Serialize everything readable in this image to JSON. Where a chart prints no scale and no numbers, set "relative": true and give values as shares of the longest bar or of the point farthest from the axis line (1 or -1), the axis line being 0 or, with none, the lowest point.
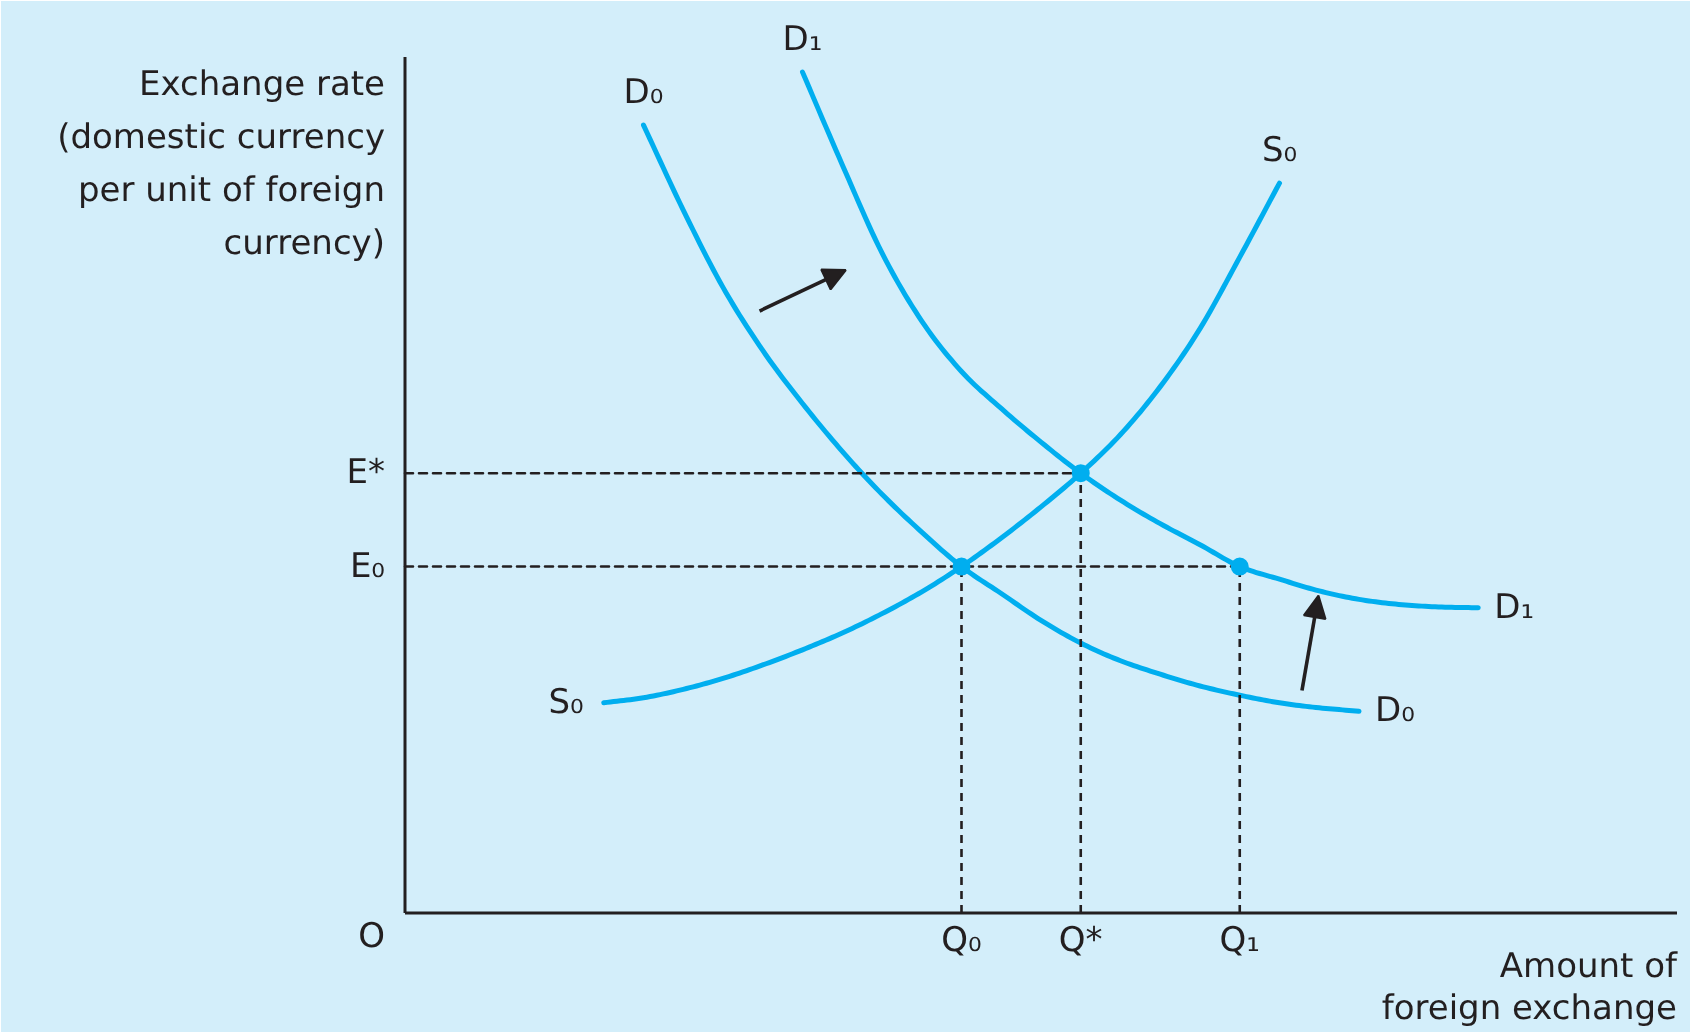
{
  "chart_data": {
    "type": "line",
    "relative": true,
    "xlabel": "Amount of foreign exchange",
    "ylabel": "Exchange rate (domestic currency per unit of foreign currency)",
    "categories": [
      null,
      null,
      null,
      null,
      null,
      null,
      null,
      null,
      null,
      null,
      null,
      null,
      null,
      null,
      "Q₀",
      null,
      null,
      "Q*",
      null,
      null,
      null,
      "Q₁",
      null,
      null,
      null,
      null,
      null,
      null,
      null,
      null,
      null,
      null,
      null
    ],
    "annotations": [
      "O"
    ],
    "series": [
      {
        "name": "D₀",
        "color": "#00aeef",
        "values": [
          null,
          null,
          null,
          null,
          null,
          null,
          0.937,
          0.836,
          0.744,
          0.669,
          0.606,
          0.549,
          0.498,
          0.453,
          0.412,
          0.38,
          0.348,
          0.321,
          0.3,
          0.284,
          0.27,
          0.259,
          0.25,
          0.244,
          0.24,
          null,
          null,
          null,
          null,
          null,
          null,
          null,
          null
        ]
      },
      {
        "name": "D₁",
        "color": "#00aeef",
        "values": [
          null,
          null,
          null,
          null,
          null,
          null,
          null,
          null,
          null,
          null,
          1.0,
          0.89,
          0.785,
          0.704,
          0.644,
          0.6,
          0.56,
          0.523,
          0.491,
          0.463,
          0.438,
          0.412,
          0.397,
          0.383,
          0.373,
          0.367,
          0.364,
          0.363,
          null,
          null,
          null,
          null,
          null
        ]
      },
      {
        "name": "S₀",
        "color": "#00aeef",
        "values": [
          null,
          null,
          null,
          null,
          null,
          0.25,
          0.256,
          0.266,
          0.279,
          0.295,
          0.313,
          0.333,
          0.356,
          0.382,
          0.412,
          0.446,
          0.483,
          0.523,
          0.569,
          0.626,
          0.695,
          0.78,
          0.868,
          null,
          null,
          null,
          null,
          null,
          null,
          null,
          null,
          null,
          null
        ]
      },
      {
        "name": "E₀",
        "color": "#231f20",
        "line_style": "dashed",
        "values": [
          0.412,
          0.412,
          0.412,
          0.412,
          0.412,
          0.412,
          0.412,
          0.412,
          0.412,
          0.412,
          0.412,
          0.412,
          0.412,
          0.412,
          0.412,
          0.412,
          0.412,
          0.412,
          0.412,
          0.412,
          0.412,
          0.412,
          null,
          null,
          null,
          null,
          null,
          null,
          null,
          null,
          null,
          null,
          null
        ]
      },
      {
        "name": "E*",
        "color": "#231f20",
        "line_style": "dashed",
        "values": [
          0.523,
          0.523,
          0.523,
          0.523,
          0.523,
          0.523,
          0.523,
          0.523,
          0.523,
          0.523,
          0.523,
          0.523,
          0.523,
          0.523,
          0.523,
          0.523,
          0.523,
          0.523,
          null,
          null,
          null,
          null,
          null,
          null,
          null,
          null,
          null,
          null,
          null,
          null,
          null,
          null,
          null
        ]
      },
      {
        "type": "lollipop",
        "color": "#00aeef",
        "marker": "circle",
        "line_style": "dashed",
        "values": [
          null,
          null,
          null,
          null,
          null,
          null,
          null,
          null,
          null,
          null,
          null,
          null,
          null,
          null,
          0.412,
          null,
          null,
          0.523,
          null,
          null,
          null,
          0.412,
          null,
          null,
          null,
          null,
          null,
          null,
          null,
          null,
          null,
          null,
          null
        ]
      }
    ],
    "marker": "none",
    "line_style": "solid",
    "grid": false,
    "legend": false
  }
}
